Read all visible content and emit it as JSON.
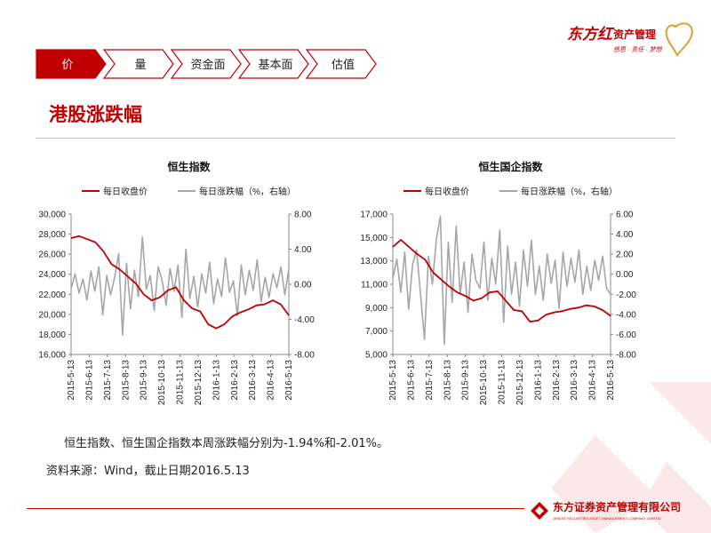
{
  "brand": {
    "logo_text": "东方红",
    "logo_sub": "资产管理",
    "slogan": "感恩 · 责任 · 梦想"
  },
  "nav": {
    "tabs": [
      "价",
      "量",
      "资金面",
      "基本面",
      "估值"
    ],
    "active": 0
  },
  "section": {
    "title": "港股涨跌幅"
  },
  "charts": [
    {
      "id": "hsi",
      "title": "恒生指数",
      "legend_close": "每日收盘价",
      "legend_change": "每日涨跌幅（%，右轴）"
    },
    {
      "id": "hscei",
      "title": "恒生国企指数",
      "legend_close": "每日收盘价",
      "legend_change": "每日涨跌幅（%，右轴）"
    }
  ],
  "summary": "恒生指数、恒生国企指数本周涨跌幅分别为-1.94%和-2.01%。",
  "source": "资料来源：Wind，截止日期2016.5.13",
  "footer": {
    "company": "东方证券资产管理有限公司",
    "company_en": "ORIENT SECURITIES ASSET MANAGEMENT COMPANY LIMITED"
  },
  "colors": {
    "accent": "#c00000",
    "close_line": "#c00000",
    "change_line": "#a6a6a6",
    "tab_active_bg": "#c00000"
  },
  "chart_data": [
    {
      "type": "line",
      "title": "恒生指数",
      "x_ticks": [
        "2015-5-13",
        "2015-6-13",
        "2015-7-13",
        "2015-8-13",
        "2015-9-13",
        "2015-10-13",
        "2015-11-13",
        "2015-12-13",
        "2016-1-13",
        "2016-2-13",
        "2016-3-13",
        "2016-4-13",
        "2016-5-13"
      ],
      "y_left": {
        "range": [
          16000,
          30000
        ],
        "ticks": [
          "16,000",
          "18,000",
          "20,000",
          "22,000",
          "24,000",
          "26,000",
          "28,000",
          "30,000"
        ]
      },
      "y_right": {
        "range": [
          -8,
          8
        ],
        "ticks": [
          "-8.00",
          "-4.00",
          "0.00",
          "4.00",
          "8.00"
        ]
      },
      "series": [
        {
          "name": "每日收盘价",
          "axis": "left",
          "values": [
            27600,
            27800,
            27500,
            27200,
            26300,
            25000,
            24500,
            23800,
            23100,
            22000,
            21400,
            21700,
            22400,
            22700,
            21400,
            20600,
            20300,
            19000,
            18600,
            19000,
            19800,
            20200,
            20500,
            20900,
            21000,
            21400,
            21000,
            19900
          ]
        },
        {
          "name": "每日涨跌幅（%，右轴）",
          "axis": "right",
          "values": [
            -0.5,
            1.2,
            -1.0,
            0.6,
            -1.8,
            1.5,
            -0.8,
            2.0,
            -3.5,
            1.0,
            -1.2,
            0.8,
            3.5,
            -5.8,
            2.4,
            -2.8,
            1.6,
            -1.4,
            5.4,
            -0.6,
            1.0,
            -3.0,
            2.0,
            0.4,
            -2.4,
            1.8,
            -0.8,
            2.2,
            -3.8,
            4.0,
            -1.6,
            0.9,
            -2.6,
            1.2,
            -1.0,
            2.5,
            -2.2,
            0.6,
            -1.4,
            3.0,
            -0.9,
            0.4,
            -3.6,
            2.2,
            -1.2,
            1.6,
            -0.7,
            2.8,
            -2.0,
            0.8,
            -1.5,
            1.2,
            -0.4,
            2.0,
            -1.2,
            1.8
          ]
        }
      ]
    },
    {
      "type": "line",
      "title": "恒生国企指数",
      "x_ticks": [
        "2015-5-13",
        "2015-6-13",
        "2015-7-13",
        "2015-8-13",
        "2015-9-13",
        "2015-10-13",
        "2015-11-13",
        "2015-12-13",
        "2016-1-13",
        "2016-2-13",
        "2016-3-13",
        "2016-4-13",
        "2016-5-13"
      ],
      "y_left": {
        "range": [
          5000,
          17000
        ],
        "ticks": [
          "5,000",
          "7,000",
          "9,000",
          "11,000",
          "13,000",
          "15,000",
          "17,000"
        ]
      },
      "y_right": {
        "range": [
          -8,
          6
        ],
        "ticks": [
          "-8.00",
          "-6.00",
          "-4.00",
          "-2.00",
          "0.00",
          "2.00",
          "4.00",
          "6.00"
        ]
      },
      "series": [
        {
          "name": "每日收盘价",
          "axis": "left",
          "values": [
            14200,
            14800,
            14200,
            13600,
            13100,
            12000,
            11400,
            10800,
            10300,
            10000,
            9600,
            9800,
            10300,
            10400,
            9600,
            8800,
            8700,
            7800,
            7900,
            8400,
            8600,
            8700,
            8900,
            9000,
            9200,
            9100,
            8800,
            8300
          ]
        },
        {
          "name": "每日涨跌幅（%，右轴）",
          "axis": "right",
          "values": [
            -0.4,
            1.5,
            -1.8,
            2.2,
            -3.5,
            1.0,
            2.4,
            -2.0,
            -6.5,
            1.8,
            -1.0,
            3.5,
            5.8,
            -7.0,
            3.2,
            -2.8,
            4.8,
            -2.0,
            1.2,
            -3.8,
            2.0,
            -0.6,
            -1.4,
            3.2,
            -2.6,
            1.6,
            -1.0,
            4.4,
            -4.8,
            2.8,
            -2.0,
            1.2,
            -3.2,
            2.4,
            -1.2,
            3.4,
            -2.0,
            0.8,
            -2.6,
            2.0,
            -0.9,
            1.4,
            -3.4,
            2.2,
            -1.2,
            1.6,
            -0.8,
            2.4,
            -2.0,
            0.8,
            -1.6,
            1.4,
            -0.6,
            1.8,
            -1.4,
            -2.0
          ]
        }
      ]
    }
  ]
}
